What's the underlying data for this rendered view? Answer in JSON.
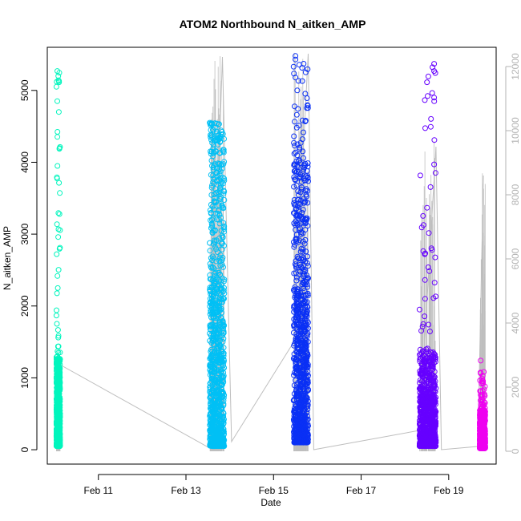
{
  "chart_data": {
    "type": "scatter",
    "title": "ATOM2 Northbound N_aitken_AMP",
    "xlabel": "Date",
    "ylabel": "N_aitken_AMP",
    "x_axis": {
      "kind": "date",
      "range": [
        "2016-02-09T20:00",
        "2016-02-20T02:00"
      ],
      "ticks": [
        {
          "value": "2016-02-11",
          "label": "Feb 11"
        },
        {
          "value": "2016-02-13",
          "label": "Feb 13"
        },
        {
          "value": "2016-02-15",
          "label": "Feb 15"
        },
        {
          "value": "2016-02-17",
          "label": "Feb 17"
        },
        {
          "value": "2016-02-19",
          "label": "Feb 19"
        }
      ]
    },
    "y_axis_left": {
      "range": [
        -200,
        5600
      ],
      "ticks": [
        0,
        1000,
        2000,
        3000,
        4000,
        5000
      ],
      "color": "#000000"
    },
    "y_axis_right": {
      "range": [
        -400,
        12600
      ],
      "ticks": [
        0,
        2000,
        4000,
        6000,
        8000,
        10000,
        12000
      ],
      "color": "#b3b3b3"
    },
    "grid": false,
    "legend": "none",
    "series": [
      {
        "color": "#00f5bd",
        "x_range": [
          "2016-02-10T01:00",
          "2016-02-10T03:00"
        ],
        "y_dense_range": [
          50,
          1300
        ],
        "y_max": 5270,
        "outliers": [
          {
            "x": "2016-02-10T01:30",
            "y": 5270
          },
          {
            "x": "2016-02-10T02:00",
            "y": 5200
          },
          {
            "x": "2016-02-10T01:00",
            "y": 5050
          },
          {
            "x": "2016-02-10T01:30",
            "y": 4850
          },
          {
            "x": "2016-02-10T02:20",
            "y": 4700
          }
        ]
      },
      {
        "color": "#00c0f5",
        "x_range": [
          "2016-02-13T13:00",
          "2016-02-13T21:00"
        ],
        "y_dense_range": [
          50,
          4300
        ],
        "y_max": 4550,
        "outliers": [
          {
            "x": "2016-02-13T13:00",
            "y": 4550
          },
          {
            "x": "2016-02-13T15:00",
            "y": 4450
          },
          {
            "x": "2016-02-13T13:30",
            "y": 4350
          }
        ]
      },
      {
        "color": "#0a30f5",
        "x_range": [
          "2016-02-15T11:00",
          "2016-02-15T19:00"
        ],
        "y_dense_range": [
          100,
          4000
        ],
        "y_max": 5480,
        "outliers": [
          {
            "x": "2016-02-15T12:00",
            "y": 5480
          },
          {
            "x": "2016-02-15T12:00",
            "y": 5430
          },
          {
            "x": "2016-02-15T11:00",
            "y": 5330
          },
          {
            "x": "2016-02-15T12:00",
            "y": 5180
          },
          {
            "x": "2016-02-15T13:00",
            "y": 5000
          }
        ]
      },
      {
        "color": "#6600ff",
        "x_range": [
          "2016-02-18T08:00",
          "2016-02-18T17:00"
        ],
        "y_dense_range": [
          50,
          1400
        ],
        "y_max": 5370,
        "outliers": [
          {
            "x": "2016-02-18T16:00",
            "y": 5370
          },
          {
            "x": "2016-02-18T16:00",
            "y": 5270
          },
          {
            "x": "2016-02-18T16:00",
            "y": 4900
          },
          {
            "x": "2016-02-18T16:00",
            "y": 3970
          },
          {
            "x": "2016-02-18T08:00",
            "y": 1950
          }
        ]
      },
      {
        "color": "#ee00f0",
        "x_range": [
          "2016-02-19T17:00",
          "2016-02-19T20:00"
        ],
        "y_dense_range": [
          20,
          550
        ],
        "y_max": 1240,
        "outliers": [
          {
            "x": "2016-02-19T17:30",
            "y": 1240
          },
          {
            "x": "2016-02-19T18:00",
            "y": 920
          }
        ]
      }
    ],
    "secondary_line": {
      "color": "#bebebe",
      "axis": "right",
      "path": [
        {
          "x": "2016-02-10T03:00",
          "y": 2700
        },
        {
          "x": "2016-02-13T13:00",
          "y": 100
        },
        {
          "x": "2016-02-13T20:00",
          "y": 12300
        },
        {
          "x": "2016-02-14T01:00",
          "y": 300
        },
        {
          "x": "2016-02-15T11:00",
          "y": 3400
        },
        {
          "x": "2016-02-15T19:00",
          "y": 12400
        },
        {
          "x": "2016-02-15T22:00",
          "y": 50
        },
        {
          "x": "2016-02-18T08:00",
          "y": 650
        },
        {
          "x": "2016-02-18T17:00",
          "y": 9500
        },
        {
          "x": "2016-02-18T20:00",
          "y": 50
        },
        {
          "x": "2016-02-19T16:00",
          "y": 150
        },
        {
          "x": "2016-02-19T19:00",
          "y": 8600
        }
      ]
    }
  }
}
